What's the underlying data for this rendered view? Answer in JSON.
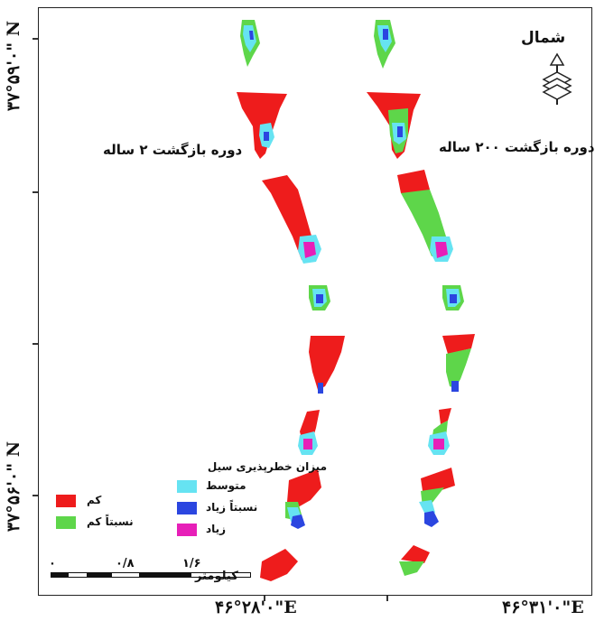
{
  "map": {
    "lat_labels": [
      "۳۷°۵۹'۰\" N",
      "۳۷°۵۶'۰\" N"
    ],
    "lon_labels": [
      "۴۶°۲۸'۰\"E",
      "۴۶°۳۱'۰\"E"
    ],
    "title_left": "دوره بازگشت ۲ ساله",
    "title_right": "دوره بازگشت ۲۰۰ ساله",
    "north_label": "شمال"
  },
  "legend": {
    "title": "میزان خطرپذیری سیل",
    "items": [
      {
        "label": "کم",
        "color": "#ee1c1c"
      },
      {
        "label": "نسبتاً کم",
        "color": "#5ed64a"
      },
      {
        "label": "متوسط",
        "color": "#66e3f2"
      },
      {
        "label": "نسبتاً زیاد",
        "color": "#2b46e0"
      },
      {
        "label": "زیاد",
        "color": "#e71fb8"
      }
    ]
  },
  "scale": {
    "ticks": [
      "۰",
      "۰/۸",
      "۱/۶"
    ],
    "unit": "کیلومتر"
  },
  "colors": {
    "low": "#ee1c1c",
    "rel_low": "#5ed64a",
    "medium": "#66e3f2",
    "rel_high": "#2b46e0",
    "high": "#e71fb8"
  }
}
